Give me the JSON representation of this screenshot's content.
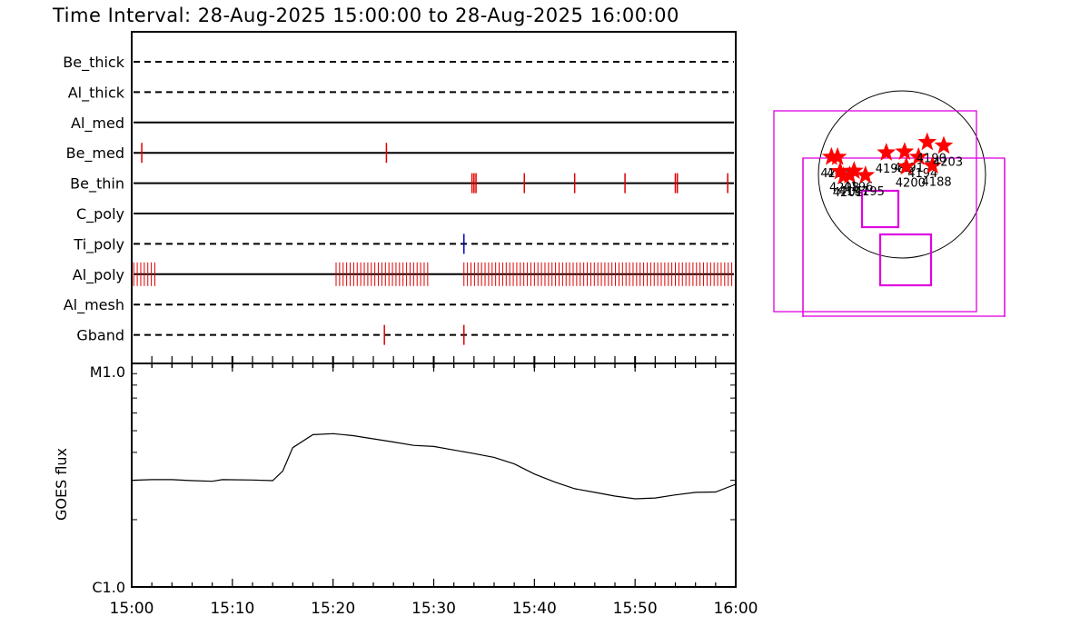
{
  "title": "Time Interval: 28-Aug-2025 15:00:00 to 28-Aug-2025 16:00:00",
  "colors": {
    "event": "#e00000",
    "event_alt": "#0000cc",
    "fov": "#e000e0",
    "star": "#ff0000",
    "line": "#000000"
  },
  "chart_data": [
    {
      "type": "event-timeline",
      "x_range_minutes": [
        0,
        60
      ],
      "channels": [
        {
          "name": "Be_thick",
          "style": "dashed",
          "events": []
        },
        {
          "name": "Al_thick",
          "style": "dashed",
          "events": []
        },
        {
          "name": "Al_med",
          "style": "solid",
          "events": []
        },
        {
          "name": "Be_med",
          "style": "solid",
          "events": [
            1.0,
            25.3
          ]
        },
        {
          "name": "Be_thin",
          "style": "solid",
          "events": [
            33.8,
            34.0,
            34.2,
            39.0,
            44.0,
            49.0,
            54.0,
            54.2,
            59.2
          ]
        },
        {
          "name": "C_poly",
          "style": "solid",
          "events": []
        },
        {
          "name": "Ti_poly",
          "style": "dashed",
          "events": [
            33.0
          ],
          "event_color": "#0000cc"
        },
        {
          "name": "Al_poly",
          "style": "solid",
          "events": []
        },
        {
          "name": "Al_mesh",
          "style": "dashed",
          "events": []
        },
        {
          "name": "Gband",
          "style": "dashed",
          "events": [
            25.1,
            33.0
          ]
        }
      ],
      "al_poly_clusters": [
        {
          "start": 0.2,
          "end": 2.3,
          "step": 0.35
        },
        {
          "start": 20.3,
          "end": 29.6,
          "step": 0.35
        },
        {
          "start": 33.0,
          "end": 59.8,
          "step": 0.35
        }
      ]
    },
    {
      "type": "line",
      "ylabel": "GOES flux",
      "yscale": "log",
      "ylim": [
        1e-06,
        1e-05
      ],
      "yticks": [
        "C1.0",
        "M1.0"
      ],
      "xticks": [
        "15:00",
        "15:10",
        "15:20",
        "15:30",
        "15:40",
        "15:50",
        "16:00"
      ],
      "x_minutes": [
        0,
        2,
        4,
        6,
        8,
        9,
        12,
        14,
        15,
        16,
        18,
        20,
        22,
        24,
        26,
        28,
        30,
        32,
        34,
        36,
        38,
        40,
        42,
        44,
        46,
        48,
        50,
        52,
        54,
        56,
        58,
        60
      ],
      "y": [
        3e-06,
        3.02e-06,
        3.02e-06,
        2.99e-06,
        2.97e-06,
        3.02e-06,
        3.01e-06,
        2.99e-06,
        3.3e-06,
        4.2e-06,
        4.8e-06,
        4.85e-06,
        4.75e-06,
        4.6e-06,
        4.45e-06,
        4.3e-06,
        4.25e-06,
        4.1e-06,
        3.95e-06,
        3.8e-06,
        3.55e-06,
        3.2e-06,
        2.95e-06,
        2.75e-06,
        2.65e-06,
        2.55e-06,
        2.48e-06,
        2.5e-06,
        2.58e-06,
        2.65e-06,
        2.66e-06,
        2.88e-06
      ]
    }
  ],
  "active_regions": [
    {
      "label": "4204",
      "x": -810,
      "y": 200
    },
    {
      "label": "4199",
      "x": -740,
      "y": 200
    },
    {
      "label": "4208",
      "x": -710,
      "y": 35
    },
    {
      "label": "4201",
      "x": -670,
      "y": -20
    },
    {
      "label": "4197",
      "x": -600,
      "y": -10
    },
    {
      "label": "4196",
      "x": -550,
      "y": 40
    },
    {
      "label": "4195",
      "x": -420,
      "y": -10
    },
    {
      "label": "4198",
      "x": -180,
      "y": 250
    },
    {
      "label": "4191",
      "x": 30,
      "y": 260
    },
    {
      "label": "4200",
      "x": 50,
      "y": 90
    },
    {
      "label": "4194",
      "x": 190,
      "y": 200
    },
    {
      "label": "4190",
      "x": 290,
      "y": 370
    },
    {
      "label": "4188",
      "x": 350,
      "y": 100
    },
    {
      "label": "4203",
      "x": 480,
      "y": 330
    }
  ]
}
